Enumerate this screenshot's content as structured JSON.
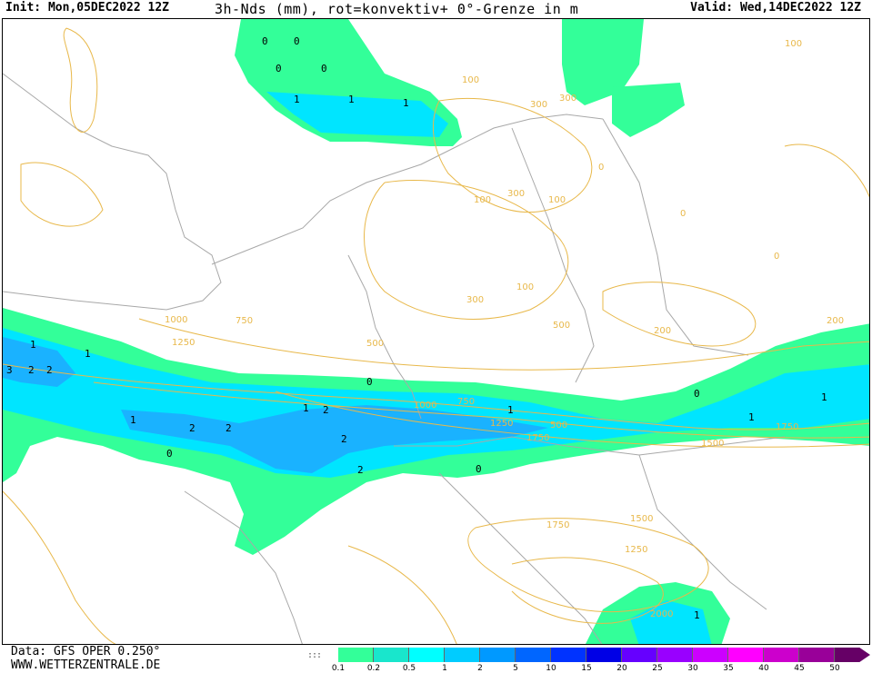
{
  "header": {
    "init": "Init: Mon,05DEC2022 12Z",
    "title": "3h-Nds (mm), rot=konvektiv+ 0°-Grenze in m",
    "valid": "Valid: Wed,14DEC2022 12Z"
  },
  "footer": {
    "data_source": "Data: GFS OPER 0.250°",
    "website": "WWW.WETTERZENTRALE.DE"
  },
  "legend": {
    "ticks": [
      "0.1",
      "0.2",
      "0.5",
      "1",
      "2",
      "5",
      "10",
      "15",
      "20",
      "25",
      "30",
      "35",
      "40",
      "45",
      "50"
    ],
    "colors": [
      "#33ff99",
      "#19e6cc",
      "#00ffff",
      "#00ccff",
      "#0099ff",
      "#0066ff",
      "#0033ff",
      "#0000e6",
      "#6600ff",
      "#9900ff",
      "#cc00ff",
      "#ff00ff",
      "#cc00cc",
      "#990099",
      "#660066"
    ]
  },
  "map": {
    "colors": {
      "contour": "#e8b84a",
      "border": "#a8a8a8",
      "coast": "#909090",
      "precip_light": "#33ff99",
      "precip_mid": "#19e6cc",
      "precip_cyan": "#00e5ff",
      "precip_blue": "#1ab2ff"
    },
    "contour_labels": [
      "100",
      "100",
      "300",
      "300",
      "300",
      "100",
      "0",
      "0",
      "0",
      "100",
      "100",
      "300",
      "500",
      "1000",
      "750",
      "1250",
      "500",
      "200",
      "200",
      "1000",
      "750",
      "1250",
      "500",
      "1750",
      "1500",
      "1750",
      "1500",
      "1250",
      "1750",
      "2000"
    ],
    "precip_values": [
      "0",
      "0",
      "0",
      "0",
      "1",
      "1",
      "1",
      "1",
      "1",
      "2",
      "2",
      "3",
      "2",
      "2",
      "1",
      "0",
      "0",
      "1",
      "2",
      "2",
      "2",
      "1",
      "0",
      "0",
      "1",
      "1",
      "1"
    ]
  }
}
